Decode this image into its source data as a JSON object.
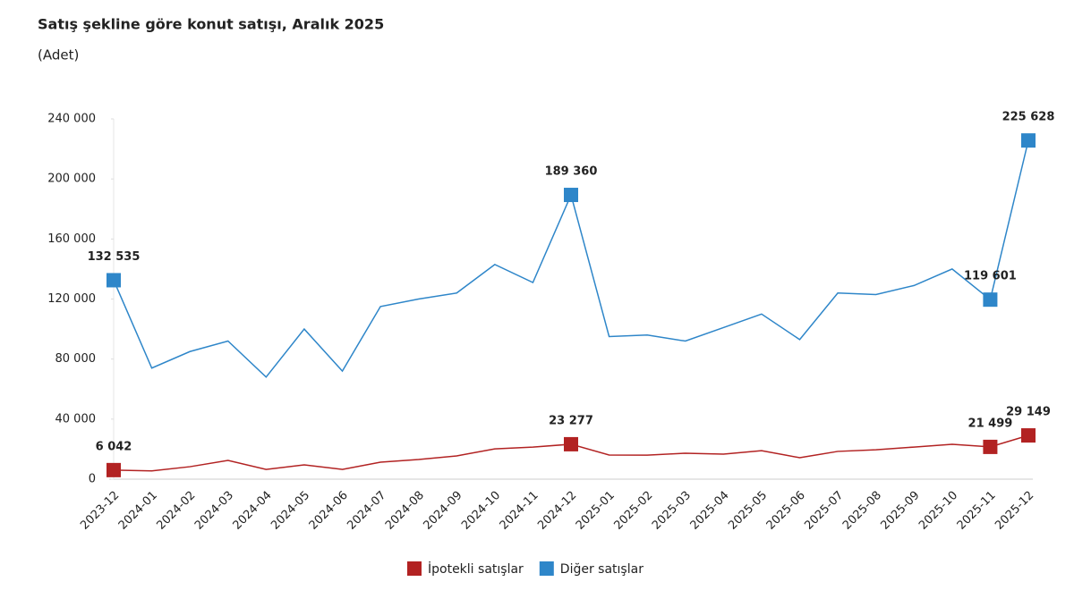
{
  "chart_data": {
    "type": "line",
    "title": "Satış şekline göre konut satışı, Aralık 2025",
    "subtitle": "(Adet)",
    "categories": [
      "2023-12",
      "2024-01",
      "2024-02",
      "2024-03",
      "2024-04",
      "2024-05",
      "2024-06",
      "2024-07",
      "2024-08",
      "2024-09",
      "2024-10",
      "2024-11",
      "2024-12",
      "2025-01",
      "2025-02",
      "2025-03",
      "2025-04",
      "2025-05",
      "2025-06",
      "2025-07",
      "2025-08",
      "2025-09",
      "2025-10",
      "2025-11",
      "2025-12"
    ],
    "series": [
      {
        "name": "İpotekli satışlar",
        "color": "#b22222",
        "values": [
          6042,
          5500,
          8300,
          12500,
          6500,
          9500,
          6500,
          11300,
          13100,
          15500,
          20200,
          21400,
          23277,
          16100,
          16000,
          17300,
          16700,
          19000,
          14300,
          18500,
          19600,
          21400,
          23200,
          21499,
          29149
        ],
        "value_labels": [
          "6 042",
          null,
          null,
          null,
          null,
          null,
          null,
          null,
          null,
          null,
          null,
          null,
          "23 277",
          null,
          null,
          null,
          null,
          null,
          null,
          null,
          null,
          null,
          null,
          "21 499",
          "29 149"
        ]
      },
      {
        "name": "Diğer satışlar",
        "color": "#2e86c9",
        "values": [
          132535,
          74000,
          85000,
          92000,
          68000,
          100000,
          72000,
          115000,
          120000,
          124000,
          143000,
          131000,
          189360,
          95000,
          96000,
          92000,
          101000,
          110000,
          93000,
          124000,
          123000,
          129000,
          140000,
          119601,
          225628
        ],
        "value_labels": [
          "132 535",
          null,
          null,
          null,
          null,
          null,
          null,
          null,
          null,
          null,
          null,
          null,
          "189 360",
          null,
          null,
          null,
          null,
          null,
          null,
          null,
          null,
          null,
          null,
          "119 601",
          "225 628"
        ]
      }
    ],
    "ylim": [
      0,
      240000
    ],
    "yticks": [
      0,
      {
        "value": 40000,
        "label": "40 000"
      },
      {
        "value": 80000,
        "label": "80 000"
      },
      {
        "value": 120000,
        "label": "120 000"
      },
      {
        "value": 160000,
        "label": "160 000"
      },
      {
        "value": 200000,
        "label": "200 000"
      },
      {
        "value": 240000,
        "label": "240 000"
      }
    ],
    "grid": false
  }
}
